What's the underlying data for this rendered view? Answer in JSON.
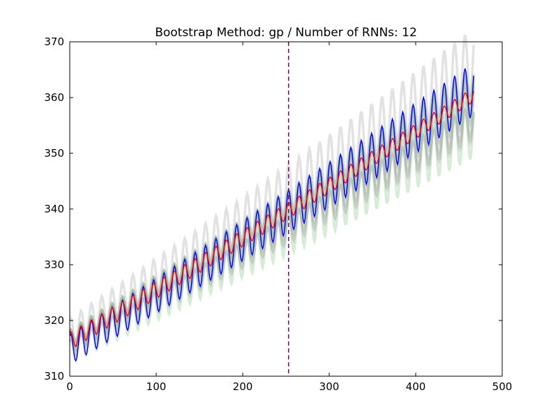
{
  "chart_data": {
    "type": "line",
    "title": "Bootstrap Method: gp / Number of RNNs: 12",
    "xlabel": "",
    "ylabel": "",
    "xlim": [
      0,
      500
    ],
    "ylim": [
      310,
      370
    ],
    "xticks": [
      0,
      100,
      200,
      300,
      400,
      500
    ],
    "yticks": [
      310,
      320,
      330,
      340,
      350,
      360,
      370
    ],
    "grid": false,
    "n_points": 468,
    "seasonal_period": 12,
    "forecast_start_x": 253,
    "series": [
      {
        "role": "observed",
        "color": "#0000ff",
        "x_range": [
          0,
          467
        ],
        "trend_start": 314.8,
        "trend_end": 359.5,
        "seasonal_amplitude_start": 2.7,
        "seasonal_amplitude_end": 4.8
      },
      {
        "role": "ensemble-mean",
        "color": "#ff0000",
        "x_range": [
          0,
          467
        ],
        "trend_start": 316.3,
        "trend_end": 358.5,
        "seasonal_amplitude_start": 1.6,
        "seasonal_amplitude_end": 1.3
      }
    ],
    "bootstrap_band": {
      "color_gray": "#a8aca8",
      "color_green": "#8cc88c",
      "count": 12,
      "spread_start": 2.0,
      "spread_end": 8.5,
      "seasonal_amplitude_start": 1.8,
      "seasonal_amplitude_end": 4.0
    },
    "divider": {
      "x": 253,
      "color": "#800080",
      "style": "dashed"
    }
  }
}
